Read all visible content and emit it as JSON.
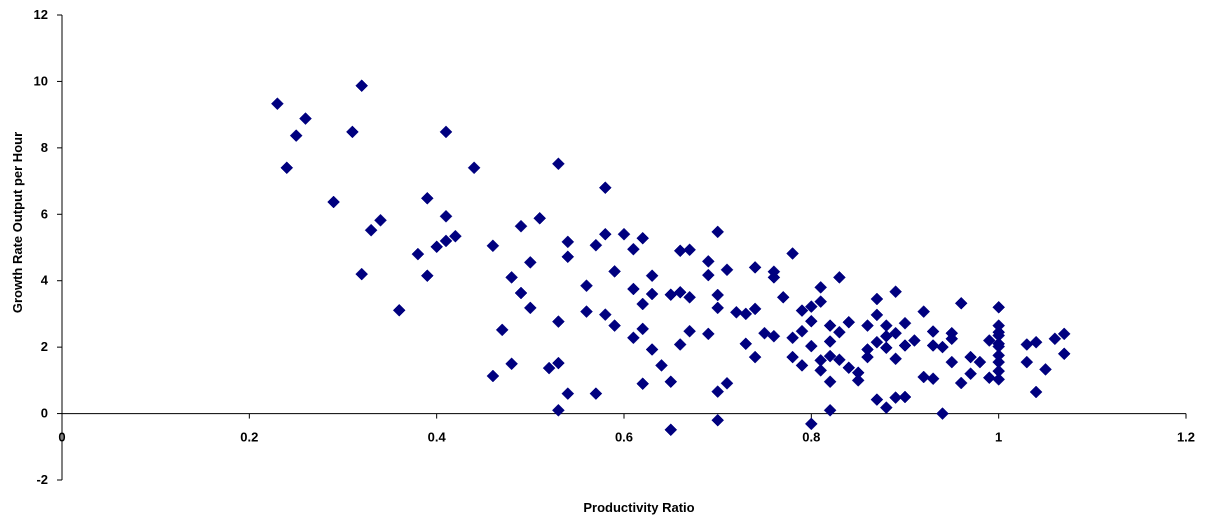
{
  "chart_data": {
    "type": "scatter",
    "title": "",
    "xlabel": "Productivity Ratio",
    "ylabel": "Growth Rate Output per Hour",
    "xlim": [
      0,
      1.2
    ],
    "ylim": [
      -2,
      12
    ],
    "x_ticks": [
      "0",
      "0.2",
      "0.4",
      "0.6",
      "0.8",
      "1",
      "1.2"
    ],
    "y_ticks": [
      "-2",
      "0",
      "2",
      "4",
      "6",
      "8",
      "10",
      "12"
    ],
    "grid": false,
    "legend": "none",
    "marker": "diamond",
    "color": "#00007F",
    "series": [
      {
        "points": [
          [
            0.23,
            9.33
          ],
          [
            0.32,
            9.87
          ],
          [
            0.25,
            8.37
          ],
          [
            0.26,
            8.88
          ],
          [
            0.24,
            7.4
          ],
          [
            0.31,
            8.48
          ],
          [
            0.41,
            8.48
          ],
          [
            0.44,
            7.4
          ],
          [
            0.29,
            6.37
          ],
          [
            0.33,
            5.52
          ],
          [
            0.34,
            5.82
          ],
          [
            0.32,
            4.2
          ],
          [
            0.36,
            3.11
          ],
          [
            0.39,
            6.48
          ],
          [
            0.4,
            5.02
          ],
          [
            0.41,
            5.94
          ],
          [
            0.42,
            5.34
          ],
          [
            0.38,
            4.8
          ],
          [
            0.39,
            4.15
          ],
          [
            0.41,
            5.2
          ],
          [
            0.46,
            5.05
          ],
          [
            0.47,
            2.52
          ],
          [
            0.46,
            1.13
          ],
          [
            0.48,
            1.5
          ],
          [
            0.48,
            4.1
          ],
          [
            0.49,
            5.64
          ],
          [
            0.49,
            3.63
          ],
          [
            0.5,
            4.55
          ],
          [
            0.5,
            3.18
          ],
          [
            0.51,
            5.88
          ],
          [
            0.52,
            1.37
          ],
          [
            0.53,
            1.52
          ],
          [
            0.53,
            0.1
          ],
          [
            0.54,
            0.6
          ],
          [
            0.53,
            2.77
          ],
          [
            0.53,
            7.52
          ],
          [
            0.54,
            5.17
          ],
          [
            0.54,
            4.72
          ],
          [
            0.56,
            3.85
          ],
          [
            0.56,
            3.07
          ],
          [
            0.57,
            0.6
          ],
          [
            0.58,
            6.8
          ],
          [
            0.57,
            5.07
          ],
          [
            0.58,
            5.4
          ],
          [
            0.59,
            4.28
          ],
          [
            0.59,
            2.65
          ],
          [
            0.58,
            2.98
          ],
          [
            0.6,
            5.4
          ],
          [
            0.61,
            2.28
          ],
          [
            0.61,
            4.95
          ],
          [
            0.62,
            5.28
          ],
          [
            0.61,
            3.75
          ],
          [
            0.62,
            2.55
          ],
          [
            0.62,
            0.9
          ],
          [
            0.62,
            3.3
          ],
          [
            0.63,
            4.15
          ],
          [
            0.63,
            3.6
          ],
          [
            0.63,
            1.93
          ],
          [
            0.64,
            1.45
          ],
          [
            0.65,
            0.96
          ],
          [
            0.65,
            3.58
          ],
          [
            0.66,
            3.65
          ],
          [
            0.65,
            -0.49
          ],
          [
            0.66,
            4.9
          ],
          [
            0.66,
            2.08
          ],
          [
            0.67,
            3.5
          ],
          [
            0.67,
            2.48
          ],
          [
            0.67,
            4.93
          ],
          [
            0.69,
            4.58
          ],
          [
            0.69,
            4.17
          ],
          [
            0.7,
            5.47
          ],
          [
            0.7,
            3.57
          ],
          [
            0.7,
            3.18
          ],
          [
            0.69,
            2.4
          ],
          [
            0.7,
            0.66
          ],
          [
            0.71,
            0.91
          ],
          [
            0.7,
            -0.2
          ],
          [
            0.71,
            4.33
          ],
          [
            0.72,
            3.05
          ],
          [
            0.73,
            2.1
          ],
          [
            0.73,
            3.0
          ],
          [
            0.74,
            1.7
          ],
          [
            0.74,
            4.4
          ],
          [
            0.74,
            3.15
          ],
          [
            0.75,
            2.42
          ],
          [
            0.76,
            4.27
          ],
          [
            0.76,
            4.1
          ],
          [
            0.76,
            2.33
          ],
          [
            0.77,
            3.5
          ],
          [
            0.78,
            1.7
          ],
          [
            0.78,
            2.28
          ],
          [
            0.78,
            4.82
          ],
          [
            0.79,
            3.1
          ],
          [
            0.79,
            2.48
          ],
          [
            0.79,
            1.45
          ],
          [
            0.8,
            3.22
          ],
          [
            0.8,
            2.78
          ],
          [
            0.8,
            2.03
          ],
          [
            0.81,
            3.37
          ],
          [
            0.81,
            1.3
          ],
          [
            0.81,
            1.6
          ],
          [
            0.8,
            -0.31
          ],
          [
            0.81,
            3.8
          ],
          [
            0.82,
            2.65
          ],
          [
            0.82,
            2.17
          ],
          [
            0.82,
            1.73
          ],
          [
            0.83,
            4.1
          ],
          [
            0.82,
            0.96
          ],
          [
            0.82,
            0.1
          ],
          [
            0.83,
            2.45
          ],
          [
            0.83,
            1.62
          ],
          [
            0.84,
            2.75
          ],
          [
            0.84,
            1.38
          ],
          [
            0.85,
            1.23
          ],
          [
            0.85,
            1.0
          ],
          [
            0.86,
            2.65
          ],
          [
            0.86,
            1.7
          ],
          [
            0.86,
            1.93
          ],
          [
            0.87,
            2.97
          ],
          [
            0.87,
            3.45
          ],
          [
            0.87,
            2.15
          ],
          [
            0.87,
            0.42
          ],
          [
            0.88,
            2.65
          ],
          [
            0.88,
            0.18
          ],
          [
            0.88,
            2.33
          ],
          [
            0.88,
            1.98
          ],
          [
            0.89,
            2.42
          ],
          [
            0.89,
            1.65
          ],
          [
            0.89,
            3.67
          ],
          [
            0.89,
            0.48
          ],
          [
            0.9,
            2.72
          ],
          [
            0.9,
            2.05
          ],
          [
            0.9,
            0.5
          ],
          [
            0.91,
            2.2
          ],
          [
            0.92,
            3.07
          ],
          [
            0.92,
            1.1
          ],
          [
            0.93,
            2.05
          ],
          [
            0.93,
            1.05
          ],
          [
            0.93,
            2.47
          ],
          [
            0.94,
            2.0
          ],
          [
            0.94,
            0.0
          ],
          [
            0.95,
            2.42
          ],
          [
            0.95,
            2.25
          ],
          [
            0.96,
            3.32
          ],
          [
            0.95,
            1.55
          ],
          [
            0.96,
            0.92
          ],
          [
            0.97,
            1.7
          ],
          [
            0.97,
            1.2
          ],
          [
            0.98,
            1.55
          ],
          [
            0.99,
            1.08
          ],
          [
            0.99,
            2.2
          ],
          [
            1.0,
            2.02
          ],
          [
            1.0,
            1.75
          ],
          [
            1.0,
            2.65
          ],
          [
            1.0,
            3.2
          ],
          [
            1.0,
            2.35
          ],
          [
            1.0,
            2.1
          ],
          [
            1.0,
            1.55
          ],
          [
            1.0,
            1.28
          ],
          [
            1.0,
            1.03
          ],
          [
            1.0,
            2.45
          ],
          [
            1.03,
            2.08
          ],
          [
            1.03,
            1.55
          ],
          [
            1.04,
            2.15
          ],
          [
            1.04,
            0.65
          ],
          [
            1.05,
            1.33
          ],
          [
            1.06,
            2.25
          ],
          [
            1.07,
            2.4
          ],
          [
            1.07,
            1.8
          ]
        ]
      }
    ]
  }
}
